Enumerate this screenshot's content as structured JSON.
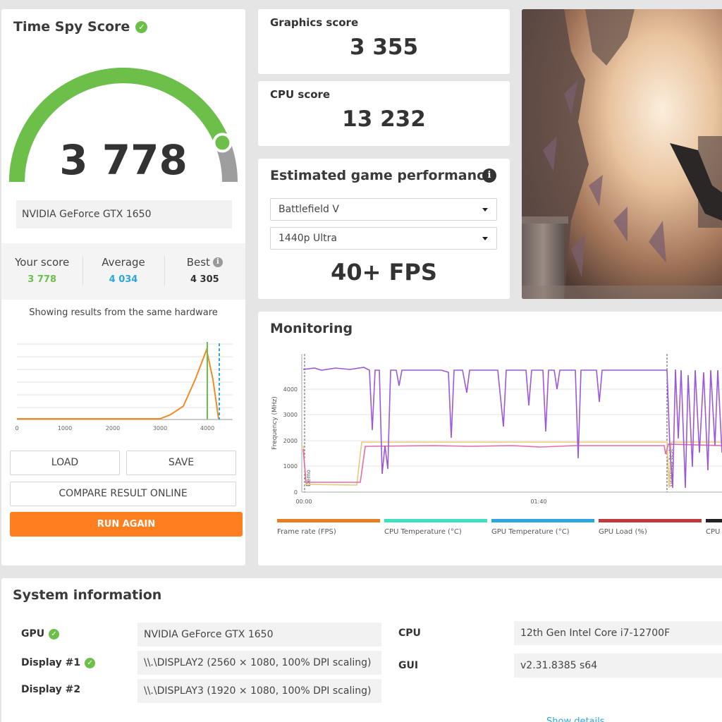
{
  "score_card": {
    "title": "Time Spy Score",
    "score": "3 778",
    "gpu": "NVIDIA GeForce GTX 1650",
    "your_score_label": "Your score",
    "your_score": "3 778",
    "average_label": "Average",
    "average": "4 034",
    "best_label": "Best",
    "best": "4 305",
    "dist_caption": "Showing results from the same hardware",
    "dist_ticks": [
      "0",
      "1000",
      "2000",
      "3000",
      "4000"
    ],
    "buttons": {
      "load": "LOAD",
      "save": "SAVE",
      "compare": "COMPARE RESULT ONLINE",
      "run_again": "RUN AGAIN"
    },
    "colors": {
      "gauge_fill": "#6cc04a",
      "gauge_track": "#9e9e9e",
      "your_score": "#6cc04a",
      "average": "#2aa6e0",
      "best": "#333333",
      "run_again": "#ff7e1f"
    },
    "gauge_fraction": 0.88
  },
  "graphics_score": {
    "label": "Graphics score",
    "value": "3 355"
  },
  "cpu_score": {
    "label": "CPU score",
    "value": "13 232"
  },
  "game_perf": {
    "title": "Estimated game performance",
    "game": "Battlefield V",
    "preset": "1440p Ultra",
    "fps": "40+ FPS"
  },
  "monitoring": {
    "title": "Monitoring",
    "ylabel": "Frequency (MHz)",
    "yticks": [
      "0",
      "1000",
      "2000",
      "3000",
      "4000"
    ],
    "xticks": [
      "00:00",
      "01:40"
    ],
    "markers": [
      "Demo",
      "Graphics test"
    ],
    "legend": [
      {
        "label": "Frame rate (FPS)",
        "color": "#e67e22"
      },
      {
        "label": "CPU Temperature (°C)",
        "color": "#3ee0c0"
      },
      {
        "label": "GPU Temperature (°C)",
        "color": "#2aa6e0"
      },
      {
        "label": "GPU Load (%)",
        "color": "#c0393b"
      },
      {
        "label": "CPU",
        "color": "#222222"
      }
    ]
  },
  "system_info": {
    "title": "System information",
    "gpu_label": "GPU",
    "gpu": "NVIDIA GeForce GTX 1650",
    "display1_label": "Display #1",
    "display1": "\\\\.\\DISPLAY2 (2560 × 1080, 100% DPI scaling)",
    "display2_label": "Display #2",
    "display2": "\\\\.\\DISPLAY3 (1920 × 1080, 100% DPI scaling)",
    "cpu_label": "CPU",
    "cpu": "12th Gen Intel Core i7-12700F",
    "gui_label": "GUI",
    "gui": "v2.31.8385 s64",
    "show_details": "Show details"
  }
}
